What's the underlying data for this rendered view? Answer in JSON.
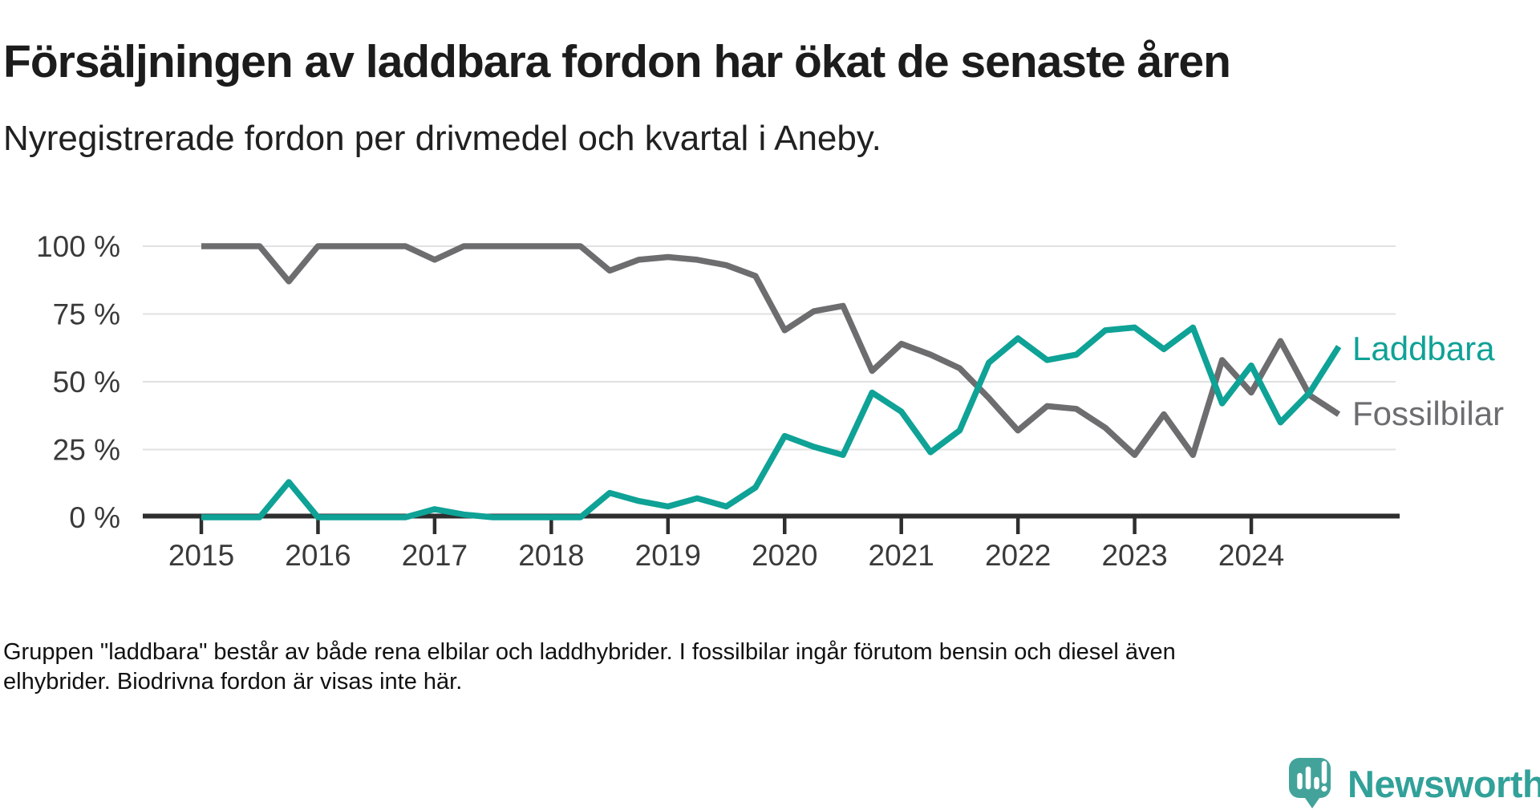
{
  "header": {
    "title": "Försäljningen av laddbara fordon har ökat de senaste åren",
    "subtitle": "Nyregistrerade fordon per drivmedel och kvartal i Aneby."
  },
  "footer": {
    "line1": "Gruppen \"laddbara\" består av både rena elbilar och laddhybrider. I fossilbilar ingår förutom bensin och diesel även",
    "line2": "elhybrider. Biodrivna fordon är visas inte här."
  },
  "logo": {
    "name": "Newsworthy",
    "icon": "speech-bubble-bar-chart-icon",
    "icon_color": "#43a39a",
    "text_color": "#31a199"
  },
  "colors": {
    "laddbara": "#0fa296",
    "fossilbilar": "#6d6d70",
    "gridline": "#e1e1e1",
    "axis": "#2e2e2e",
    "tick_label": "#3a3a3a",
    "title_text": "#1c1c1c"
  },
  "chart_data": {
    "type": "line",
    "title": "Nyregistrerade fordon per drivmedel och kvartal i Aneby",
    "x_start": "2015 Q1",
    "x_end": "2024 Q4",
    "frequency": "quarterly",
    "points_per_year": 4,
    "x_tick_labels": [
      "2015",
      "2016",
      "2017",
      "2018",
      "2019",
      "2020",
      "2021",
      "2022",
      "2023",
      "2024"
    ],
    "y_tick_labels": [
      "0 %",
      "25 %",
      "50 %",
      "75 %",
      "100 %"
    ],
    "y_tick_values": [
      0,
      25,
      50,
      75,
      100
    ],
    "ylim": [
      0,
      100
    ],
    "grid": "horizontal",
    "legend_position": "right-end-of-lines",
    "series": [
      {
        "name": "Laddbara",
        "color": "#0fa296",
        "values": [
          0,
          0,
          0,
          13,
          0,
          0,
          0,
          0,
          3,
          1,
          0,
          0,
          0,
          0,
          9,
          6,
          4,
          7,
          4,
          11,
          30,
          26,
          23,
          46,
          39,
          24,
          32,
          57,
          66,
          58,
          60,
          69,
          70,
          62,
          70,
          42,
          56,
          35,
          46,
          63
        ]
      },
      {
        "name": "Fossilbilar",
        "color": "#6d6d70",
        "values": [
          100,
          100,
          100,
          87,
          100,
          100,
          100,
          100,
          95,
          100,
          100,
          100,
          100,
          100,
          91,
          95,
          96,
          95,
          93,
          89,
          69,
          76,
          78,
          54,
          64,
          60,
          55,
          44,
          32,
          41,
          40,
          33,
          23,
          38,
          23,
          58,
          46,
          65,
          45,
          38
        ]
      }
    ]
  }
}
